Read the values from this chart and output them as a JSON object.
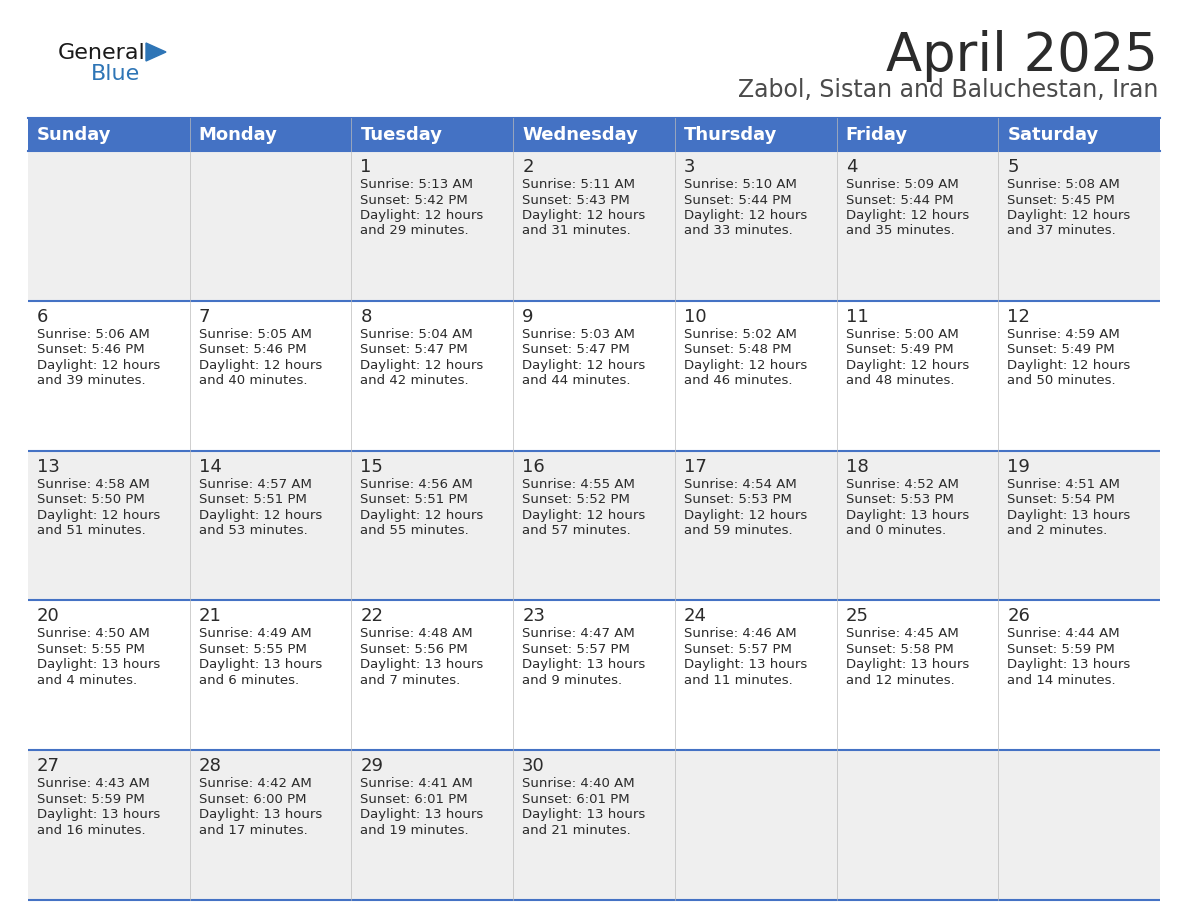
{
  "title": "April 2025",
  "subtitle": "Zabol, Sistan and Baluchestan, Iran",
  "header_color": "#4472C4",
  "header_text_color": "#FFFFFF",
  "days_of_week": [
    "Sunday",
    "Monday",
    "Tuesday",
    "Wednesday",
    "Thursday",
    "Friday",
    "Saturday"
  ],
  "background_color": "#FFFFFF",
  "row_alt_color": "#EFEFEF",
  "row_color": "#FFFFFF",
  "divider_color": "#4472C4",
  "cell_data": [
    [
      {
        "day": "",
        "sunrise": "",
        "sunset": "",
        "daylight": ""
      },
      {
        "day": "",
        "sunrise": "",
        "sunset": "",
        "daylight": ""
      },
      {
        "day": "1",
        "sunrise": "5:13 AM",
        "sunset": "5:42 PM",
        "daylight": "12 hours\nand 29 minutes."
      },
      {
        "day": "2",
        "sunrise": "5:11 AM",
        "sunset": "5:43 PM",
        "daylight": "12 hours\nand 31 minutes."
      },
      {
        "day": "3",
        "sunrise": "5:10 AM",
        "sunset": "5:44 PM",
        "daylight": "12 hours\nand 33 minutes."
      },
      {
        "day": "4",
        "sunrise": "5:09 AM",
        "sunset": "5:44 PM",
        "daylight": "12 hours\nand 35 minutes."
      },
      {
        "day": "5",
        "sunrise": "5:08 AM",
        "sunset": "5:45 PM",
        "daylight": "12 hours\nand 37 minutes."
      }
    ],
    [
      {
        "day": "6",
        "sunrise": "5:06 AM",
        "sunset": "5:46 PM",
        "daylight": "12 hours\nand 39 minutes."
      },
      {
        "day": "7",
        "sunrise": "5:05 AM",
        "sunset": "5:46 PM",
        "daylight": "12 hours\nand 40 minutes."
      },
      {
        "day": "8",
        "sunrise": "5:04 AM",
        "sunset": "5:47 PM",
        "daylight": "12 hours\nand 42 minutes."
      },
      {
        "day": "9",
        "sunrise": "5:03 AM",
        "sunset": "5:47 PM",
        "daylight": "12 hours\nand 44 minutes."
      },
      {
        "day": "10",
        "sunrise": "5:02 AM",
        "sunset": "5:48 PM",
        "daylight": "12 hours\nand 46 minutes."
      },
      {
        "day": "11",
        "sunrise": "5:00 AM",
        "sunset": "5:49 PM",
        "daylight": "12 hours\nand 48 minutes."
      },
      {
        "day": "12",
        "sunrise": "4:59 AM",
        "sunset": "5:49 PM",
        "daylight": "12 hours\nand 50 minutes."
      }
    ],
    [
      {
        "day": "13",
        "sunrise": "4:58 AM",
        "sunset": "5:50 PM",
        "daylight": "12 hours\nand 51 minutes."
      },
      {
        "day": "14",
        "sunrise": "4:57 AM",
        "sunset": "5:51 PM",
        "daylight": "12 hours\nand 53 minutes."
      },
      {
        "day": "15",
        "sunrise": "4:56 AM",
        "sunset": "5:51 PM",
        "daylight": "12 hours\nand 55 minutes."
      },
      {
        "day": "16",
        "sunrise": "4:55 AM",
        "sunset": "5:52 PM",
        "daylight": "12 hours\nand 57 minutes."
      },
      {
        "day": "17",
        "sunrise": "4:54 AM",
        "sunset": "5:53 PM",
        "daylight": "12 hours\nand 59 minutes."
      },
      {
        "day": "18",
        "sunrise": "4:52 AM",
        "sunset": "5:53 PM",
        "daylight": "13 hours\nand 0 minutes."
      },
      {
        "day": "19",
        "sunrise": "4:51 AM",
        "sunset": "5:54 PM",
        "daylight": "13 hours\nand 2 minutes."
      }
    ],
    [
      {
        "day": "20",
        "sunrise": "4:50 AM",
        "sunset": "5:55 PM",
        "daylight": "13 hours\nand 4 minutes."
      },
      {
        "day": "21",
        "sunrise": "4:49 AM",
        "sunset": "5:55 PM",
        "daylight": "13 hours\nand 6 minutes."
      },
      {
        "day": "22",
        "sunrise": "4:48 AM",
        "sunset": "5:56 PM",
        "daylight": "13 hours\nand 7 minutes."
      },
      {
        "day": "23",
        "sunrise": "4:47 AM",
        "sunset": "5:57 PM",
        "daylight": "13 hours\nand 9 minutes."
      },
      {
        "day": "24",
        "sunrise": "4:46 AM",
        "sunset": "5:57 PM",
        "daylight": "13 hours\nand 11 minutes."
      },
      {
        "day": "25",
        "sunrise": "4:45 AM",
        "sunset": "5:58 PM",
        "daylight": "13 hours\nand 12 minutes."
      },
      {
        "day": "26",
        "sunrise": "4:44 AM",
        "sunset": "5:59 PM",
        "daylight": "13 hours\nand 14 minutes."
      }
    ],
    [
      {
        "day": "27",
        "sunrise": "4:43 AM",
        "sunset": "5:59 PM",
        "daylight": "13 hours\nand 16 minutes."
      },
      {
        "day": "28",
        "sunrise": "4:42 AM",
        "sunset": "6:00 PM",
        "daylight": "13 hours\nand 17 minutes."
      },
      {
        "day": "29",
        "sunrise": "4:41 AM",
        "sunset": "6:01 PM",
        "daylight": "13 hours\nand 19 minutes."
      },
      {
        "day": "30",
        "sunrise": "4:40 AM",
        "sunset": "6:01 PM",
        "daylight": "13 hours\nand 21 minutes."
      },
      {
        "day": "",
        "sunrise": "",
        "sunset": "",
        "daylight": ""
      },
      {
        "day": "",
        "sunrise": "",
        "sunset": "",
        "daylight": ""
      },
      {
        "day": "",
        "sunrise": "",
        "sunset": "",
        "daylight": ""
      }
    ]
  ],
  "title_fontsize": 38,
  "subtitle_fontsize": 17,
  "day_number_fontsize": 13,
  "cell_text_fontsize": 9.5,
  "header_fontsize": 13,
  "logo_general_fontsize": 16,
  "logo_blue_fontsize": 16
}
